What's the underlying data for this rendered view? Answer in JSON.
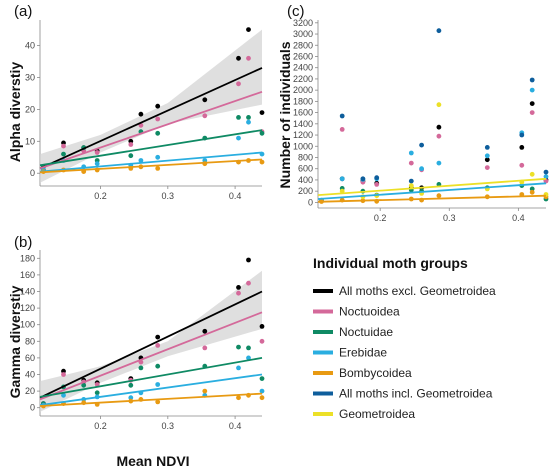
{
  "xlabel": "Mean NDVI",
  "legend": {
    "title": "Individual moth groups",
    "items": [
      {
        "label": "All moths excl. Geometroidea",
        "color": "#000000"
      },
      {
        "label": "Noctuoidea",
        "color": "#d4699a"
      },
      {
        "label": "Noctuidae",
        "color": "#0f8a64"
      },
      {
        "label": "Erebidae",
        "color": "#2aaee0"
      },
      {
        "label": "Bombycoidea",
        "color": "#e89a12"
      },
      {
        "label": "All moths incl. Geometroidea",
        "color": "#0e5e9c"
      },
      {
        "label": "Geometroidea",
        "color": "#ece027"
      }
    ]
  },
  "chart_data": [
    {
      "id": "a",
      "tag": "(a)",
      "type": "scatter",
      "ylabel": "Alpha diverstiy",
      "xlim": [
        0.11,
        0.44
      ],
      "ylim": [
        -4,
        48
      ],
      "xticks": [
        0.2,
        0.3,
        0.4
      ],
      "yticks": [
        0,
        10,
        20,
        30,
        40
      ],
      "band": {
        "x": [
          0.11,
          0.2,
          0.3,
          0.44
        ],
        "lower": [
          -3,
          6.5,
          15.5,
          21.5
        ],
        "upper": [
          6,
          12,
          22,
          45
        ]
      },
      "series": [
        {
          "color": "#000000",
          "fit": [
            [
              0.11,
              1.5
            ],
            [
              0.44,
              33
            ]
          ],
          "points": [
            [
              0.115,
              1
            ],
            [
              0.145,
              9.5
            ],
            [
              0.175,
              8
            ],
            [
              0.195,
              7
            ],
            [
              0.245,
              10
            ],
            [
              0.26,
              18.5
            ],
            [
              0.285,
              21
            ],
            [
              0.355,
              23
            ],
            [
              0.405,
              36
            ],
            [
              0.42,
              45
            ],
            [
              0.44,
              19
            ]
          ]
        },
        {
          "color": "#d4699a",
          "fit": [
            [
              0.11,
              1.5
            ],
            [
              0.44,
              25.5
            ]
          ],
          "points": [
            [
              0.115,
              1
            ],
            [
              0.145,
              8.5
            ],
            [
              0.175,
              7
            ],
            [
              0.195,
              6.5
            ],
            [
              0.245,
              9
            ],
            [
              0.26,
              15
            ],
            [
              0.285,
              17
            ],
            [
              0.355,
              18
            ],
            [
              0.405,
              28
            ],
            [
              0.42,
              36
            ],
            [
              0.44,
              13
            ]
          ]
        },
        {
          "color": "#0f8a64",
          "fit": [
            [
              0.11,
              2.5
            ],
            [
              0.44,
              13.5
            ]
          ],
          "points": [
            [
              0.115,
              2
            ],
            [
              0.145,
              6
            ],
            [
              0.175,
              8
            ],
            [
              0.195,
              4
            ],
            [
              0.245,
              5.5
            ],
            [
              0.26,
              13
            ],
            [
              0.285,
              12.5
            ],
            [
              0.355,
              11
            ],
            [
              0.405,
              17.5
            ],
            [
              0.42,
              17.5
            ],
            [
              0.44,
              12.5
            ]
          ]
        },
        {
          "color": "#2aaee0",
          "fit": [
            [
              0.11,
              0.5
            ],
            [
              0.44,
              6.5
            ]
          ],
          "points": [
            [
              0.115,
              1
            ],
            [
              0.145,
              4
            ],
            [
              0.175,
              2
            ],
            [
              0.195,
              3
            ],
            [
              0.245,
              2.5
            ],
            [
              0.26,
              4
            ],
            [
              0.285,
              5
            ],
            [
              0.355,
              4
            ],
            [
              0.405,
              11
            ],
            [
              0.42,
              16
            ],
            [
              0.44,
              6
            ]
          ]
        },
        {
          "color": "#e89a12",
          "fit": [
            [
              0.11,
              0.3
            ],
            [
              0.44,
              4.3
            ]
          ],
          "points": [
            [
              0.115,
              0.5
            ],
            [
              0.145,
              1
            ],
            [
              0.175,
              0.5
            ],
            [
              0.195,
              1
            ],
            [
              0.245,
              1.5
            ],
            [
              0.26,
              2
            ],
            [
              0.285,
              1.5
            ],
            [
              0.355,
              3
            ],
            [
              0.405,
              3.5
            ],
            [
              0.42,
              4
            ],
            [
              0.44,
              3.5
            ]
          ]
        }
      ]
    },
    {
      "id": "b",
      "tag": "(b)",
      "type": "scatter",
      "ylabel": "Gamma diverstiy",
      "xlim": [
        0.11,
        0.44
      ],
      "ylim": [
        -10,
        190
      ],
      "xticks": [
        0.2,
        0.3,
        0.4
      ],
      "yticks": [
        0,
        20,
        40,
        60,
        80,
        100,
        120,
        140,
        160,
        180
      ],
      "band": {
        "x": [
          0.11,
          0.2,
          0.3,
          0.44
        ],
        "lower": [
          -5,
          30,
          62,
          95
        ],
        "upper": [
          32,
          50,
          80,
          165
        ]
      },
      "series": [
        {
          "color": "#000000",
          "fit": [
            [
              0.11,
              12
            ],
            [
              0.44,
              140
            ]
          ],
          "points": [
            [
              0.115,
              5
            ],
            [
              0.145,
              44
            ],
            [
              0.175,
              33
            ],
            [
              0.195,
              30
            ],
            [
              0.245,
              35
            ],
            [
              0.26,
              60
            ],
            [
              0.285,
              85
            ],
            [
              0.355,
              92
            ],
            [
              0.405,
              145
            ],
            [
              0.42,
              178
            ],
            [
              0.44,
              98
            ]
          ]
        },
        {
          "color": "#d4699a",
          "fit": [
            [
              0.11,
              10
            ],
            [
              0.44,
              115
            ]
          ],
          "points": [
            [
              0.115,
              5
            ],
            [
              0.145,
              40
            ],
            [
              0.175,
              31
            ],
            [
              0.195,
              28
            ],
            [
              0.245,
              33
            ],
            [
              0.26,
              55
            ],
            [
              0.285,
              75
            ],
            [
              0.355,
              72
            ],
            [
              0.405,
              138
            ],
            [
              0.42,
              150
            ],
            [
              0.44,
              80
            ]
          ]
        },
        {
          "color": "#0f8a64",
          "fit": [
            [
              0.11,
              13
            ],
            [
              0.44,
              60
            ]
          ],
          "points": [
            [
              0.115,
              5
            ],
            [
              0.145,
              25
            ],
            [
              0.175,
              27
            ],
            [
              0.195,
              18
            ],
            [
              0.245,
              27
            ],
            [
              0.26,
              48
            ],
            [
              0.285,
              50
            ],
            [
              0.355,
              50
            ],
            [
              0.405,
              73
            ],
            [
              0.42,
              72
            ],
            [
              0.44,
              35
            ]
          ]
        },
        {
          "color": "#2aaee0",
          "fit": [
            [
              0.11,
              3
            ],
            [
              0.44,
              40
            ]
          ],
          "points": [
            [
              0.115,
              3
            ],
            [
              0.145,
              15
            ],
            [
              0.175,
              10
            ],
            [
              0.195,
              13
            ],
            [
              0.245,
              12
            ],
            [
              0.26,
              18
            ],
            [
              0.285,
              28
            ],
            [
              0.355,
              15
            ],
            [
              0.405,
              48
            ],
            [
              0.42,
              60
            ],
            [
              0.44,
              20
            ]
          ]
        },
        {
          "color": "#e89a12",
          "fit": [
            [
              0.11,
              2
            ],
            [
              0.44,
              17
            ]
          ],
          "points": [
            [
              0.115,
              2
            ],
            [
              0.145,
              5
            ],
            [
              0.175,
              6
            ],
            [
              0.195,
              4
            ],
            [
              0.245,
              8
            ],
            [
              0.26,
              10
            ],
            [
              0.285,
              7
            ],
            [
              0.355,
              20
            ],
            [
              0.405,
              12
            ],
            [
              0.42,
              15
            ],
            [
              0.44,
              12
            ]
          ]
        }
      ]
    },
    {
      "id": "c",
      "tag": "(c)",
      "type": "scatter",
      "ylabel": "Number of individuals",
      "xlim": [
        0.11,
        0.44
      ],
      "ylim": [
        -100,
        3250
      ],
      "xticks": [
        0.2,
        0.3,
        0.4
      ],
      "yticks": [
        0,
        200,
        400,
        600,
        800,
        1000,
        1200,
        1400,
        1600,
        1800,
        2000,
        2200,
        2400,
        2600,
        2800,
        3000,
        3200
      ],
      "series": [
        {
          "color": "#000000",
          "fit": null,
          "points": [
            [
              0.145,
              420
            ],
            [
              0.175,
              380
            ],
            [
              0.195,
              340
            ],
            [
              0.245,
              260
            ],
            [
              0.26,
              260
            ],
            [
              0.285,
              1340
            ],
            [
              0.355,
              760
            ],
            [
              0.405,
              980
            ],
            [
              0.42,
              1760
            ],
            [
              0.44,
              400
            ]
          ]
        },
        {
          "color": "#d4699a",
          "fit": null,
          "points": [
            [
              0.145,
              1300
            ],
            [
              0.175,
              360
            ],
            [
              0.195,
              320
            ],
            [
              0.245,
              700
            ],
            [
              0.26,
              580
            ],
            [
              0.285,
              1180
            ],
            [
              0.355,
              620
            ],
            [
              0.405,
              660
            ],
            [
              0.42,
              1600
            ],
            [
              0.44,
              380
            ]
          ]
        },
        {
          "color": "#0f8a64",
          "fit": null,
          "points": [
            [
              0.115,
              30
            ],
            [
              0.145,
              250
            ],
            [
              0.175,
              200
            ],
            [
              0.195,
              130
            ],
            [
              0.245,
              220
            ],
            [
              0.26,
              200
            ],
            [
              0.285,
              320
            ],
            [
              0.355,
              260
            ],
            [
              0.405,
              300
            ],
            [
              0.42,
              240
            ],
            [
              0.44,
              60
            ]
          ]
        },
        {
          "color": "#2aaee0",
          "fit": [
            [
              0.11,
              60
            ],
            [
              0.44,
              340
            ]
          ],
          "points": [
            [
              0.115,
              40
            ],
            [
              0.145,
              420
            ],
            [
              0.175,
              410
            ],
            [
              0.195,
              420
            ],
            [
              0.245,
              880
            ],
            [
              0.26,
              600
            ],
            [
              0.285,
              700
            ],
            [
              0.355,
              830
            ],
            [
              0.405,
              1240
            ],
            [
              0.42,
              2000
            ],
            [
              0.44,
              460
            ]
          ]
        },
        {
          "color": "#e89a12",
          "fit": [
            [
              0.11,
              10
            ],
            [
              0.44,
              120
            ]
          ],
          "points": [
            [
              0.115,
              15
            ],
            [
              0.145,
              40
            ],
            [
              0.175,
              30
            ],
            [
              0.195,
              20
            ],
            [
              0.245,
              60
            ],
            [
              0.26,
              40
            ],
            [
              0.285,
              120
            ],
            [
              0.355,
              100
            ],
            [
              0.405,
              140
            ],
            [
              0.42,
              180
            ],
            [
              0.44,
              100
            ]
          ]
        },
        {
          "color": "#0e5e9c",
          "fit": null,
          "points": [
            [
              0.145,
              1540
            ],
            [
              0.175,
              420
            ],
            [
              0.195,
              440
            ],
            [
              0.245,
              380
            ],
            [
              0.26,
              1020
            ],
            [
              0.285,
              3060
            ],
            [
              0.355,
              980
            ],
            [
              0.405,
              1200
            ],
            [
              0.42,
              2180
            ],
            [
              0.44,
              540
            ]
          ]
        },
        {
          "color": "#ece027",
          "fit": [
            [
              0.11,
              130
            ],
            [
              0.44,
              420
            ]
          ],
          "points": [
            [
              0.145,
              200
            ],
            [
              0.175,
              100
            ],
            [
              0.195,
              120
            ],
            [
              0.245,
              300
            ],
            [
              0.26,
              160
            ],
            [
              0.285,
              1740
            ],
            [
              0.355,
              240
            ],
            [
              0.405,
              360
            ],
            [
              0.42,
              500
            ],
            [
              0.44,
              140
            ]
          ]
        }
      ]
    }
  ]
}
